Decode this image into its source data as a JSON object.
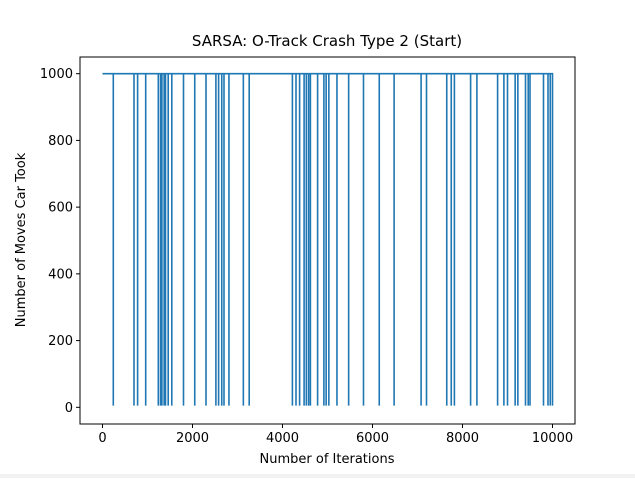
{
  "chart_data": {
    "type": "line",
    "title": "SARSA: O-Track Crash Type 2 (Start)",
    "xlabel": "Number of Iterations",
    "ylabel": "Number of Moves Car Took",
    "xlim": [
      -500,
      10500
    ],
    "ylim": [
      -50,
      1050
    ],
    "xticks": [
      0,
      2000,
      4000,
      6000,
      8000,
      10000
    ],
    "yticks": [
      0,
      200,
      400,
      600,
      800,
      1000
    ],
    "grid": false,
    "legend": "none",
    "line_color": "#1f77b4",
    "series": [
      {
        "baseline": 1000,
        "x_range": [
          0,
          10000
        ],
        "drops_to": 5,
        "drop_x": [
          240,
          700,
          780,
          960,
          1240,
          1290,
          1320,
          1370,
          1400,
          1460,
          1540,
          1800,
          2050,
          2300,
          2520,
          2580,
          2650,
          2700,
          2810,
          3130,
          3260,
          4220,
          4300,
          4380,
          4480,
          4530,
          4580,
          4620,
          4780,
          4920,
          4970,
          5030,
          5210,
          5470,
          5800,
          6150,
          6480,
          7080,
          7200,
          7650,
          7750,
          7820,
          8180,
          8320,
          8780,
          8920,
          9000,
          9170,
          9230,
          9400,
          9460,
          9500,
          9800,
          9900,
          9950,
          10000
        ]
      }
    ]
  }
}
